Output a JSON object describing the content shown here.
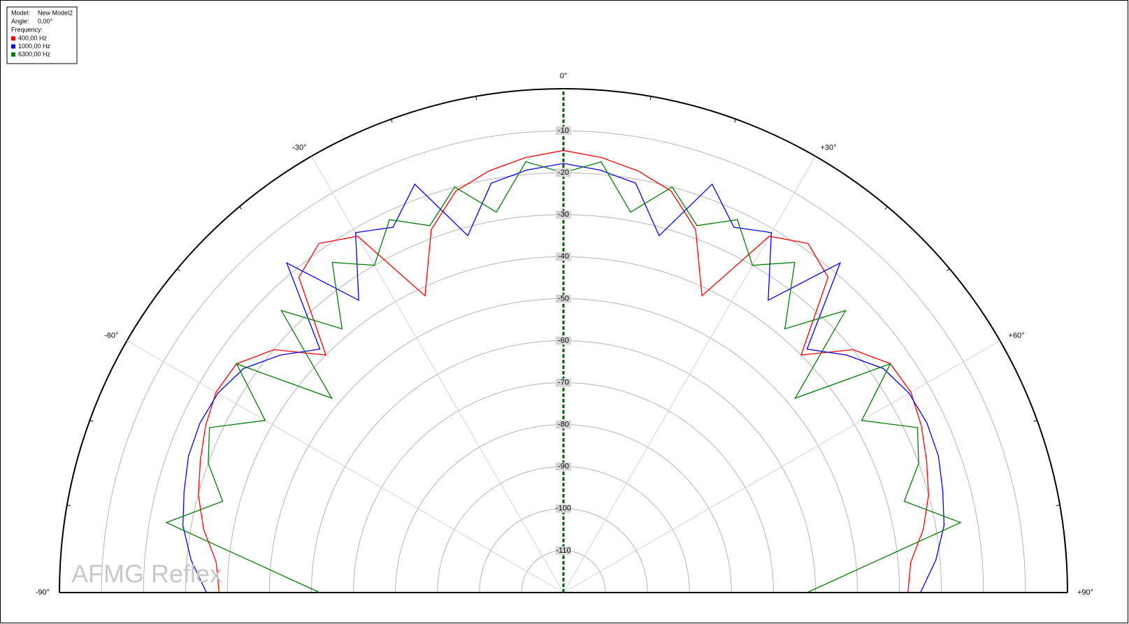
{
  "chart_data": {
    "type": "polar",
    "legend": {
      "model_label": "Model:",
      "model": "New Model2",
      "angle_label": "Angle:",
      "angle": "0,00°",
      "frequency_label": "Frequency:"
    },
    "watermark": "AFMG Reflex",
    "thetalim": [
      -90,
      90
    ],
    "thetaticks": [
      {
        "value": -90,
        "label": "-90°"
      },
      {
        "value": -60,
        "label": "-60°"
      },
      {
        "value": -30,
        "label": "-30°"
      },
      {
        "value": 0,
        "label": "0°"
      },
      {
        "value": 30,
        "label": "+30°"
      },
      {
        "value": 60,
        "label": "+60°"
      },
      {
        "value": 90,
        "label": "+90°"
      }
    ],
    "rlim": [
      -120,
      0
    ],
    "rticks": [
      -10,
      -20,
      -30,
      -40,
      -50,
      -60,
      -70,
      -80,
      -90,
      -100,
      -110
    ],
    "x": [
      -90,
      -85,
      -80,
      -75,
      -70,
      -65,
      -60,
      -55,
      -50,
      -45,
      -40,
      -35,
      -30,
      -25,
      -20,
      -15,
      -10,
      -5,
      0,
      5,
      10,
      15,
      20,
      25,
      30,
      35,
      40,
      45,
      50,
      55,
      60,
      65,
      70,
      75,
      80,
      85,
      90
    ],
    "series": [
      {
        "name": "400,00 Hz",
        "color": "#ff0000",
        "values": [
          -38,
          -37,
          -33,
          -30,
          -28,
          -26,
          -24.5,
          -25,
          -30,
          -40,
          -22,
          -18.5,
          -22,
          -42,
          -28,
          -21,
          -18,
          -16,
          -14.7,
          -16,
          -18,
          -21,
          -28,
          -42,
          -22,
          -18.5,
          -22,
          -40,
          -30,
          -25,
          -24.5,
          -26,
          -28,
          -30,
          -33,
          -37,
          -38
        ]
      },
      {
        "name": "1000,00 Hz",
        "color": "#0000ff",
        "values": [
          -35,
          -31,
          -28,
          -26.5,
          -25,
          -24.5,
          -25,
          -27,
          -32,
          -38,
          -17.5,
          -35,
          -21,
          -24,
          -16.5,
          -32,
          -21,
          -19,
          -17.8,
          -19,
          -21,
          -32,
          -16.5,
          -24,
          -21,
          -35,
          -17.5,
          -38,
          -32,
          -27,
          -25,
          -24.5,
          -25,
          -26.5,
          -28,
          -31,
          -35
        ]
      },
      {
        "name": "6300,00 Hz",
        "color": "#008000",
        "values": [
          -62,
          -48,
          -24,
          -36,
          -30,
          -27,
          -38,
          -25,
          -48,
          -25,
          -38,
          -24,
          -30,
          -22,
          -27,
          -20,
          -28,
          -17,
          -20,
          -17,
          -28,
          -20,
          -27,
          -22,
          -30,
          -24,
          -38,
          -25,
          -48,
          -25,
          -38,
          -27,
          -30,
          -36,
          -24,
          -48,
          -62
        ]
      }
    ]
  }
}
